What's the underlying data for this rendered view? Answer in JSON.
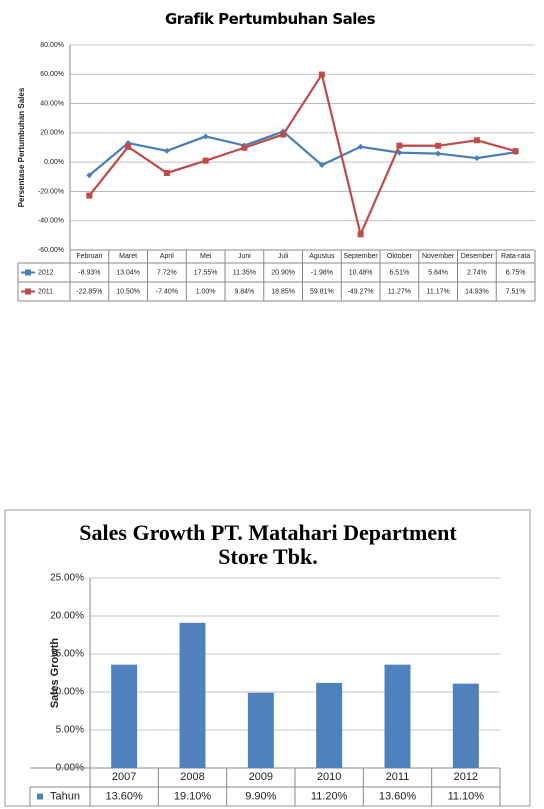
{
  "chart_data": [
    {
      "type": "line",
      "title": "Grafik Pertumbuhan Sales",
      "ylabel": "Persentase Pertumbuhan Sales",
      "categories": [
        "Februari",
        "Maret",
        "April",
        "Mei",
        "Juni",
        "Juli",
        "Agustus",
        "September",
        "Oktober",
        "November",
        "Desember",
        "Rata-rata"
      ],
      "series": [
        {
          "name": "2012",
          "color": "#4a7ebb",
          "marker": "diamond",
          "values": [
            -8.93,
            13.04,
            7.72,
            17.55,
            11.35,
            20.9,
            -1.98,
            10.48,
            6.51,
            5.84,
            2.74,
            6.75
          ],
          "value_labels": [
            "-8.93%",
            "13.04%",
            "7.72%",
            "17.55%",
            "11.35%",
            "20.90%",
            "-1.98%",
            "10.48%",
            "6.51%",
            "5.84%",
            "2.74%",
            "6.75%"
          ]
        },
        {
          "name": "2011",
          "color": "#be4b48",
          "marker": "square",
          "values": [
            -22.85,
            10.5,
            -7.4,
            1.0,
            9.84,
            18.85,
            59.81,
            -49.27,
            11.27,
            11.17,
            14.93,
            7.51
          ],
          "value_labels": [
            "-22.85%",
            "10.50%",
            "-7.40%",
            "1.00%",
            "9.84%",
            "18.85%",
            "59.81%",
            "-49.27%",
            "11.27%",
            "11.17%",
            "14.93%",
            "7.51%"
          ]
        }
      ],
      "ylim": [
        -60,
        80
      ],
      "yticks": [
        {
          "value": -60,
          "label": "-60.00%"
        },
        {
          "value": -40,
          "label": "-40.00%"
        },
        {
          "value": -20,
          "label": "-20.00%"
        },
        {
          "value": 0,
          "label": "0.00%"
        },
        {
          "value": 20,
          "label": "20.00%"
        },
        {
          "value": 40,
          "label": "40.00%"
        },
        {
          "value": 60,
          "label": "60.00%"
        },
        {
          "value": 80,
          "label": "80.00%"
        }
      ],
      "grid": true
    },
    {
      "type": "bar",
      "title": "Sales Growth PT. Matahari Department Store Tbk.",
      "ylabel": "Sales Growth",
      "categories": [
        "2007",
        "2008",
        "2009",
        "2010",
        "2011",
        "2012"
      ],
      "series": [
        {
          "name": "Tahun",
          "color": "#4f81bd",
          "marker": "square",
          "values": [
            13.6,
            19.1,
            9.9,
            11.2,
            13.6,
            11.1
          ],
          "value_labels": [
            "13.60%",
            "19.10%",
            "9.90%",
            "11.20%",
            "13.60%",
            "11.10%"
          ]
        }
      ],
      "ylim": [
        0,
        25
      ],
      "yticks": [
        {
          "value": 0,
          "label": "0.00%"
        },
        {
          "value": 5,
          "label": "5.00%"
        },
        {
          "value": 10,
          "label": "10.00%"
        },
        {
          "value": 15,
          "label": "15.00%"
        },
        {
          "value": 20,
          "label": "20.00%"
        },
        {
          "value": 25,
          "label": "25.00%"
        }
      ],
      "grid": true
    }
  ]
}
